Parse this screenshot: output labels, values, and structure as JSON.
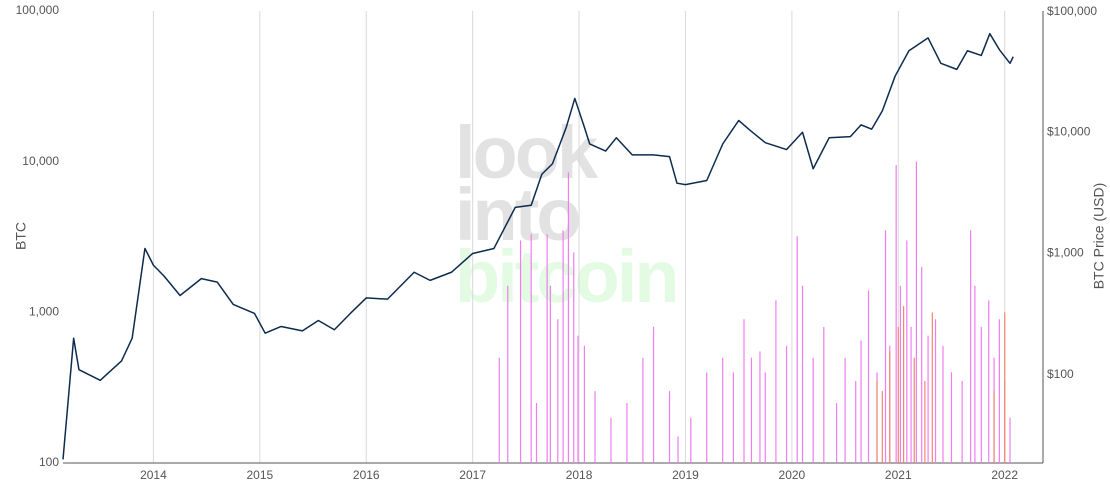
{
  "chart_data": {
    "type": "bar_line",
    "watermark": [
      "look",
      "into",
      "bitcoin"
    ],
    "ylabel": "BTC",
    "y2label": "BTC Price (USD)",
    "log_y": true,
    "log_y2": true,
    "grid_x": true,
    "xlim": [
      2013.15,
      2022.36
    ],
    "xticks": [
      2014,
      2015,
      2016,
      2017,
      2018,
      2019,
      2020,
      2021,
      2022
    ],
    "ylim": [
      100,
      100000
    ],
    "yticks": [
      {
        "value": 100000,
        "label": "100,000"
      },
      {
        "value": 10000,
        "label": "10,000"
      },
      {
        "value": 1000,
        "label": "1,000"
      },
      100
    ],
    "y2lim": [
      18.7,
      100000
    ],
    "y2ticks": [
      {
        "value": 100000,
        "label": "$100,000"
      },
      {
        "value": 10000,
        "label": "$10,000"
      },
      {
        "value": 1000,
        "label": "$1,000"
      },
      {
        "value": 100,
        "label": "$100"
      }
    ],
    "series": [
      {
        "kind": "bar",
        "color": "#f07cf0",
        "x": [
          2017.25,
          2017.33,
          2017.45,
          2017.55,
          2017.6,
          2017.7,
          2017.73,
          2017.8,
          2017.85,
          2017.9,
          2017.95,
          2017.99,
          2018.05,
          2018.15,
          2018.3,
          2018.45,
          2018.6,
          2018.7,
          2018.85,
          2018.93,
          2019.05,
          2019.2,
          2019.35,
          2019.45,
          2019.55,
          2019.62,
          2019.7,
          2019.75,
          2019.85,
          2019.95,
          2020.05,
          2020.1,
          2020.2,
          2020.3,
          2020.42,
          2020.5,
          2020.6,
          2020.65,
          2020.72,
          2020.8,
          2020.88,
          2020.92,
          2020.98,
          2021.02,
          2021.08,
          2021.12,
          2021.17,
          2021.22,
          2021.28,
          2021.35,
          2021.42,
          2021.5,
          2021.6,
          2021.68,
          2021.72,
          2021.78,
          2021.85,
          2021.9,
          2021.95,
          2022.0,
          2022.05
        ],
        "values": [
          500,
          1500,
          3000,
          3300,
          250,
          3300,
          1500,
          900,
          3500,
          8500,
          2500,
          700,
          600,
          300,
          200,
          250,
          500,
          800,
          300,
          150,
          200,
          400,
          500,
          400,
          900,
          500,
          550,
          400,
          1200,
          600,
          3200,
          1500,
          500,
          800,
          250,
          500,
          350,
          650,
          1400,
          400,
          3500,
          600,
          9500,
          1500,
          3000,
          800,
          10000,
          2000,
          700,
          900,
          600,
          400,
          350,
          3500,
          1500,
          800,
          1200,
          500,
          900,
          350,
          200
        ]
      },
      {
        "kind": "bar",
        "color": "#f5876b",
        "x": [
          2020.8,
          2020.85,
          2020.92,
          2021.0,
          2021.05,
          2021.15,
          2021.25,
          2021.32,
          2021.9,
          2022.0
        ],
        "values": [
          350,
          300,
          550,
          800,
          1100,
          500,
          350,
          1000,
          300,
          1000
        ]
      },
      {
        "kind": "line",
        "axis": "y2",
        "color": "#0d2b4e",
        "x": [
          2013.15,
          2013.25,
          2013.3,
          2013.5,
          2013.7,
          2013.8,
          2013.92,
          2014.0,
          2014.1,
          2014.25,
          2014.45,
          2014.6,
          2014.75,
          2014.95,
          2015.05,
          2015.2,
          2015.4,
          2015.55,
          2015.7,
          2015.85,
          2016.0,
          2016.2,
          2016.45,
          2016.6,
          2016.8,
          2017.0,
          2017.2,
          2017.4,
          2017.55,
          2017.65,
          2017.75,
          2017.88,
          2017.96,
          2018.05,
          2018.1,
          2018.25,
          2018.35,
          2018.5,
          2018.7,
          2018.85,
          2018.92,
          2019.0,
          2019.2,
          2019.35,
          2019.5,
          2019.6,
          2019.75,
          2019.95,
          2020.1,
          2020.2,
          2020.35,
          2020.55,
          2020.65,
          2020.75,
          2020.85,
          2020.97,
          2021.1,
          2021.28,
          2021.4,
          2021.55,
          2021.65,
          2021.78,
          2021.86,
          2021.95,
          2022.05,
          2022.08
        ],
        "values": [
          20,
          200,
          110,
          90,
          130,
          200,
          1100,
          800,
          650,
          450,
          620,
          580,
          380,
          320,
          220,
          250,
          230,
          280,
          235,
          320,
          430,
          420,
          700,
          600,
          700,
          1000,
          1100,
          2400,
          2500,
          4500,
          5500,
          11000,
          19000,
          11000,
          8000,
          7000,
          9000,
          6500,
          6500,
          6300,
          3800,
          3700,
          4000,
          8000,
          12500,
          10500,
          8200,
          7200,
          10000,
          5000,
          9000,
          9200,
          11500,
          10600,
          15000,
          29000,
          47000,
          60000,
          37000,
          33000,
          47000,
          43000,
          65000,
          48000,
          37000,
          42000
        ]
      }
    ]
  }
}
